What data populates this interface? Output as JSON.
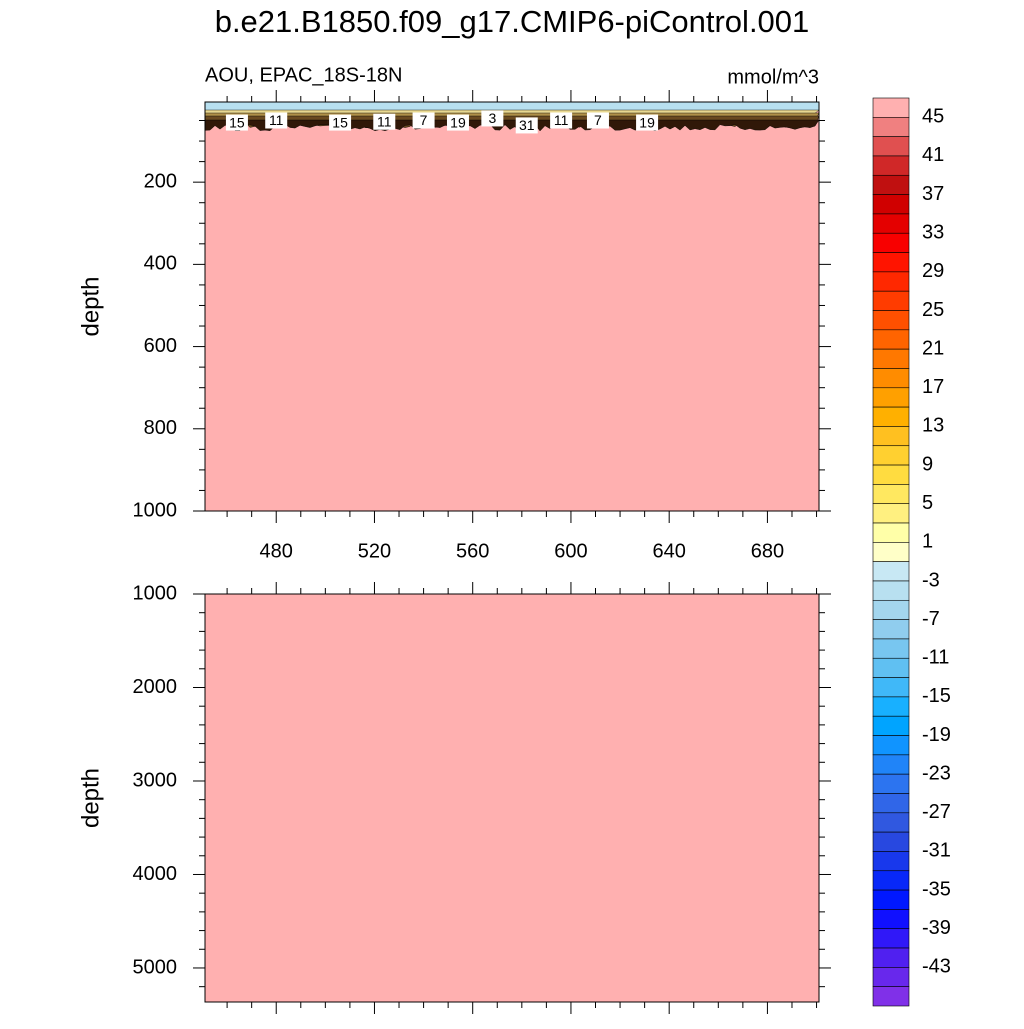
{
  "title": "b.e21.B1850.f09_g17.CMIP6-piControl.001",
  "chart_data": [
    {
      "type": "contour",
      "subtitle_left": "AOU, EPAC_18S-18N",
      "subtitle_right": "mmol/m^3",
      "ylabel": "depth",
      "xlim": [
        451,
        701
      ],
      "ylim": [
        5,
        1000
      ],
      "y_reversed": true,
      "xticks": [
        480,
        520,
        560,
        600,
        640,
        680
      ],
      "yticks": [
        200,
        400,
        600,
        800,
        1000
      ],
      "x_minor": 3,
      "y_minor": 3,
      "show_xtick_labels": true,
      "contour_labels": [
        {
          "x": 464,
          "depth": 55,
          "label": 15
        },
        {
          "x": 480,
          "depth": 50,
          "label": 11
        },
        {
          "x": 506,
          "depth": 55,
          "label": 15
        },
        {
          "x": 524,
          "depth": 53,
          "label": 11
        },
        {
          "x": 540,
          "depth": 50,
          "label": 7
        },
        {
          "x": 554,
          "depth": 55,
          "label": 19
        },
        {
          "x": 568,
          "depth": 45,
          "label": 3
        },
        {
          "x": 582,
          "depth": 62,
          "label": 31
        },
        {
          "x": 596,
          "depth": 50,
          "label": 11
        },
        {
          "x": 611,
          "depth": 50,
          "label": 7
        },
        {
          "x": 631,
          "depth": 55,
          "label": 19
        }
      ]
    },
    {
      "type": "contour",
      "ylabel": "depth",
      "xlim": [
        451,
        701
      ],
      "ylim": [
        1000,
        5364
      ],
      "y_reversed": true,
      "xticks": [
        480,
        520,
        560,
        600,
        640,
        680
      ],
      "yticks": [
        1000,
        2000,
        3000,
        4000,
        5000
      ],
      "x_minor": 3,
      "y_minor": 4,
      "show_xtick_labels": false
    }
  ],
  "colorbar": {
    "levels": [
      45,
      41,
      37,
      33,
      29,
      25,
      21,
      17,
      13,
      9,
      5,
      1,
      -3,
      -7,
      -11,
      -15,
      -19,
      -23,
      -27,
      -31,
      -35,
      -39,
      -43
    ],
    "colors": [
      "#ffb0b0",
      "#f08080",
      "#e05050",
      "#d02828",
      "#c01010",
      "#d00000",
      "#e40000",
      "#f80000",
      "#ff1400",
      "#ff2800",
      "#ff3c00",
      "#ff5000",
      "#ff6400",
      "#ff7800",
      "#ff8c00",
      "#ffa000",
      "#ffb000",
      "#ffc020",
      "#ffd030",
      "#ffdc40",
      "#ffe860",
      "#fff080",
      "#ffffa8",
      "#ffffc8",
      "#c8e8f4",
      "#b8e0f0",
      "#a4d6ee",
      "#90cdee",
      "#78c6f0",
      "#60c0f2",
      "#40b8f8",
      "#18b0ff",
      "#00a4ff",
      "#1094ff",
      "#2084f8",
      "#2c74f0",
      "#3066e8",
      "#3058e0",
      "#2848e0",
      "#1838ec",
      "#0828f8",
      "#0018ff",
      "#1010ff",
      "#3018f8",
      "#5020f0",
      "#6828ec",
      "#8030e8"
    ]
  }
}
